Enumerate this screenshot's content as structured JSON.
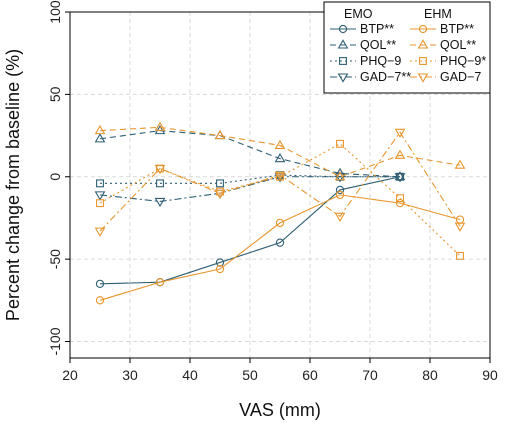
{
  "chart_data": {
    "type": "line",
    "xlabel": "VAS (mm)",
    "ylabel": "Percent change from baseline (%)",
    "xlim": [
      20,
      90
    ],
    "ylim": [
      -110,
      100
    ],
    "xticks": [
      20,
      30,
      40,
      50,
      60,
      70,
      80,
      90
    ],
    "yticks": [
      -100,
      -50,
      0,
      50,
      100
    ],
    "grid": true,
    "legend_position": "top-right",
    "colors": {
      "EMO": "#2e5e74",
      "EHM": "#e8962e"
    },
    "legend": {
      "groups": [
        {
          "title": "EMO",
          "entries": [
            "BTP**",
            "QOL**",
            "PHQ−9",
            "GAD−7**"
          ]
        },
        {
          "title": "EHM",
          "entries": [
            "BTP**",
            "QOL**",
            "PHQ−9*",
            "GAD−7"
          ]
        }
      ]
    },
    "series": [
      {
        "name": "BTP**",
        "group": "EMO",
        "marker": "circle",
        "dash": "solid",
        "x": [
          25,
          35,
          45,
          55,
          65,
          75
        ],
        "y": [
          -65,
          -64,
          -52,
          -40,
          -8,
          0
        ]
      },
      {
        "name": "QOL**",
        "group": "EMO",
        "marker": "triangle-up",
        "dash": "dash",
        "x": [
          25,
          35,
          45,
          55,
          65,
          75
        ],
        "y": [
          23,
          28,
          25,
          11,
          2,
          0
        ]
      },
      {
        "name": "PHQ−9",
        "group": "EMO",
        "marker": "square",
        "dash": "dot",
        "x": [
          25,
          35,
          45,
          55,
          65,
          75
        ],
        "y": [
          -4,
          -4,
          -4,
          1,
          0,
          0
        ]
      },
      {
        "name": "GAD−7**",
        "group": "EMO",
        "marker": "triangle-down",
        "dash": "dashdot",
        "x": [
          25,
          35,
          45,
          55,
          65,
          75
        ],
        "y": [
          -11,
          -15,
          -10,
          0,
          0,
          0
        ]
      },
      {
        "name": "BTP**",
        "group": "EHM",
        "marker": "circle",
        "dash": "solid",
        "x": [
          25,
          35,
          45,
          55,
          65,
          75,
          85
        ],
        "y": [
          -75,
          -64,
          -56,
          -28,
          -11,
          -16,
          -26
        ]
      },
      {
        "name": "QOL**",
        "group": "EHM",
        "marker": "triangle-up",
        "dash": "dash",
        "x": [
          25,
          35,
          45,
          55,
          65,
          75,
          85
        ],
        "y": [
          28,
          30,
          25,
          19,
          0,
          13,
          7
        ]
      },
      {
        "name": "PHQ−9*",
        "group": "EHM",
        "marker": "square",
        "dash": "dot",
        "x": [
          25,
          35,
          45,
          55,
          65,
          75,
          85
        ],
        "y": [
          -16,
          5,
          -9,
          0,
          20,
          -13,
          -48
        ]
      },
      {
        "name": "GAD−7",
        "group": "EHM",
        "marker": "triangle-down",
        "dash": "dashdot",
        "x": [
          25,
          35,
          45,
          55,
          65,
          75,
          85
        ],
        "y": [
          -33,
          5,
          -10,
          1,
          -24,
          27,
          -30
        ]
      }
    ]
  }
}
